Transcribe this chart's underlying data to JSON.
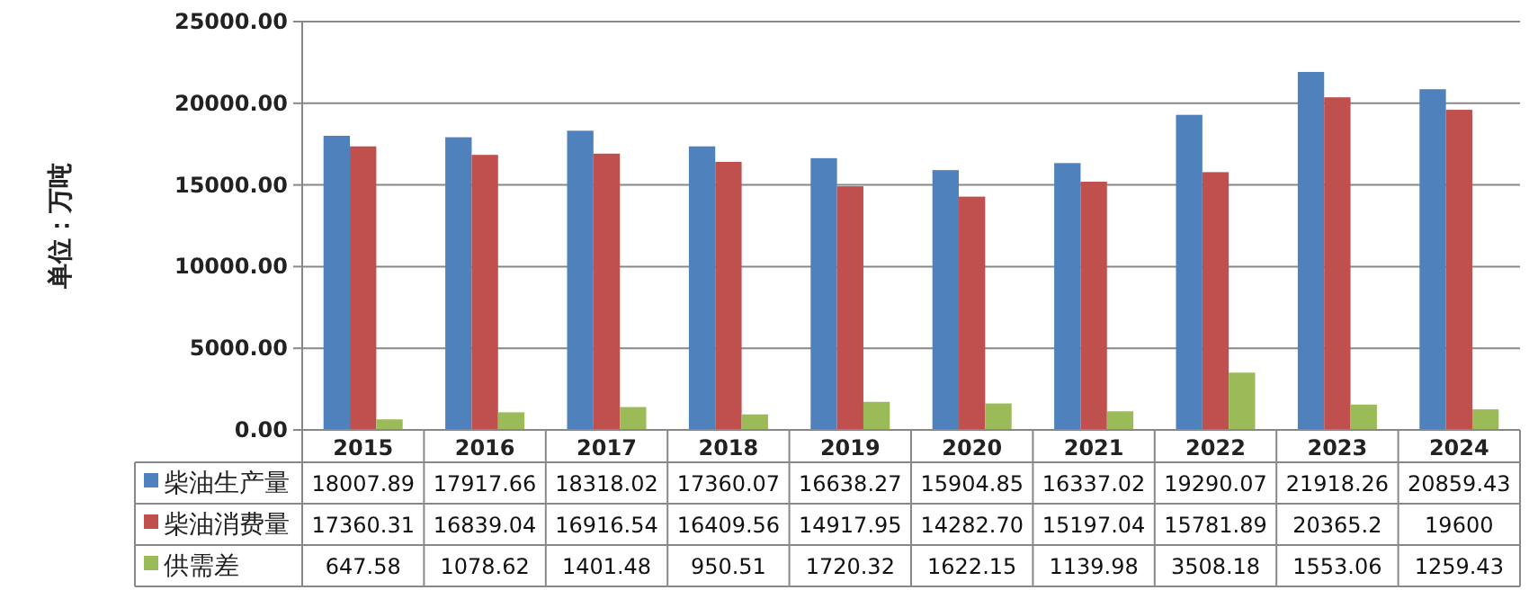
{
  "chart_data": {
    "type": "bar",
    "ylabel": "单位：万吨",
    "categories": [
      "2015",
      "2016",
      "2017",
      "2018",
      "2019",
      "2020",
      "2021",
      "2022",
      "2023",
      "2024"
    ],
    "series": [
      {
        "name": "柴油生产量",
        "color": "#4f81bd",
        "values": [
          18007.89,
          17917.66,
          18318.02,
          17360.07,
          16638.27,
          15904.85,
          16337.02,
          19290.07,
          21918.26,
          20859.43
        ],
        "value_labels": [
          "18007.89",
          "17917.66",
          "18318.02",
          "17360.07",
          "16638.27",
          "15904.85",
          "16337.02",
          "19290.07",
          "21918.26",
          "20859.43"
        ]
      },
      {
        "name": "柴油消费量",
        "color": "#c0504d",
        "values": [
          17360.31,
          16839.04,
          16916.54,
          16409.56,
          14917.95,
          14282.7,
          15197.04,
          15781.89,
          20365.2,
          19600
        ],
        "value_labels": [
          "17360.31",
          "16839.04",
          "16916.54",
          "16409.56",
          "14917.95",
          "14282.70",
          "15197.04",
          "15781.89",
          "20365.2",
          "19600"
        ]
      },
      {
        "name": "供需差",
        "color": "#9bbb59",
        "values": [
          647.58,
          1078.62,
          1401.48,
          950.51,
          1720.32,
          1622.15,
          1139.98,
          3508.18,
          1553.06,
          1259.43
        ],
        "value_labels": [
          "647.58",
          "1078.62",
          "1401.48",
          "950.51",
          "1720.32",
          "1622.15",
          "1139.98",
          "3508.18",
          "1553.06",
          "1259.43"
        ]
      }
    ],
    "ylim": [
      0,
      25000
    ],
    "yticks": [
      {
        "value": 0,
        "label": "0.00"
      },
      {
        "value": 5000,
        "label": "5000.00"
      },
      {
        "value": 10000,
        "label": "10000.00"
      },
      {
        "value": 15000,
        "label": "15000.00"
      },
      {
        "value": 20000,
        "label": "20000.00"
      },
      {
        "value": 25000,
        "label": "25000.00"
      }
    ],
    "grid": "y",
    "legend": "bottom"
  }
}
